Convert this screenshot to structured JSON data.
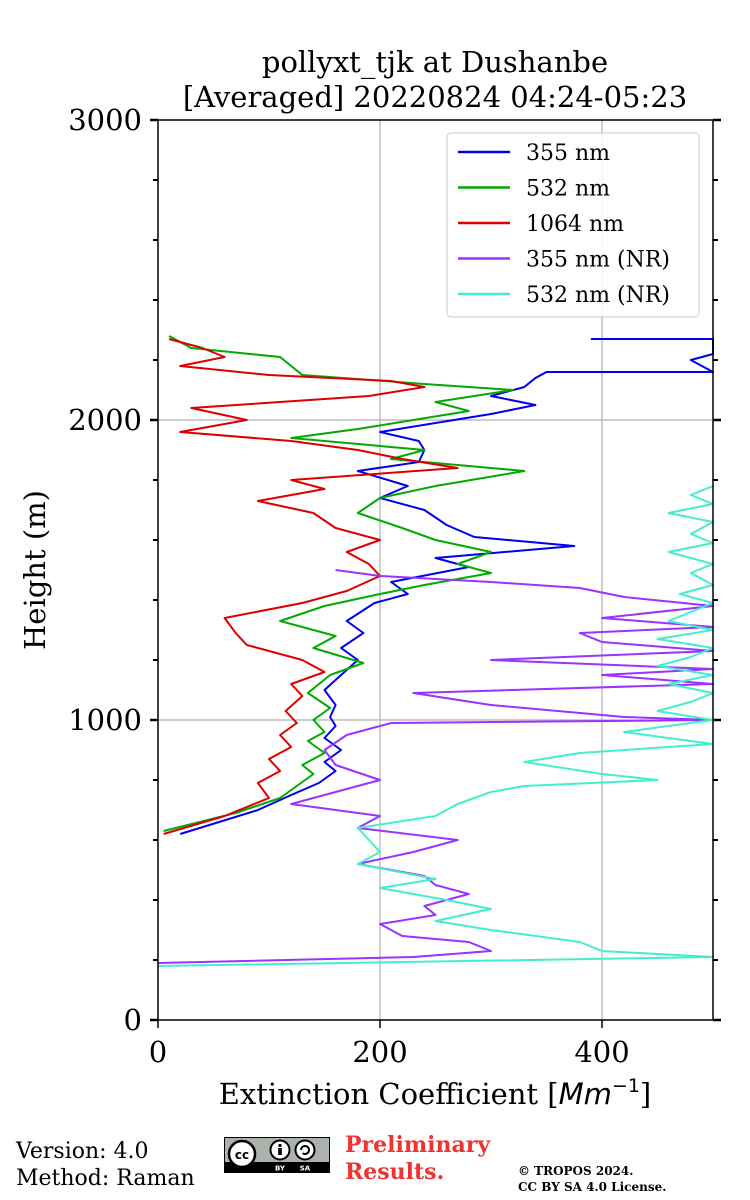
{
  "chart_data": {
    "type": "line",
    "title_line1": "pollyxt_tjk at Dushanbe",
    "title_line2": "[Averaged] 20220824 04:24-05:23",
    "xlabel": "Extinction Coefficient [Mm⁻¹]",
    "xlabel_prefix": "Extinction Coefficient [",
    "xlabel_unit": "Mm",
    "xlabel_exp": "−1",
    "xlabel_suffix": "]",
    "ylabel": "Height (m)",
    "xlim": [
      0,
      500
    ],
    "ylim": [
      0,
      3000
    ],
    "xticks": [
      0,
      200,
      400
    ],
    "yticks": [
      0,
      1000,
      2000,
      3000
    ],
    "grid": true,
    "legend_position": "top-right",
    "series": [
      {
        "name": "355 nm",
        "color": "#0000ee",
        "points": [
          [
            20,
            620
          ],
          [
            90,
            700
          ],
          [
            120,
            750
          ],
          [
            145,
            790
          ],
          [
            160,
            830
          ],
          [
            150,
            860
          ],
          [
            165,
            900
          ],
          [
            150,
            940
          ],
          [
            160,
            980
          ],
          [
            155,
            1010
          ],
          [
            160,
            1050
          ],
          [
            150,
            1100
          ],
          [
            165,
            1150
          ],
          [
            180,
            1200
          ],
          [
            165,
            1240
          ],
          [
            185,
            1290
          ],
          [
            170,
            1330
          ],
          [
            195,
            1390
          ],
          [
            225,
            1420
          ],
          [
            210,
            1460
          ],
          [
            280,
            1510
          ],
          [
            250,
            1540
          ],
          [
            375,
            1580
          ],
          [
            285,
            1610
          ],
          [
            260,
            1650
          ],
          [
            240,
            1700
          ],
          [
            200,
            1740
          ],
          [
            225,
            1780
          ],
          [
            180,
            1830
          ],
          [
            235,
            1860
          ],
          [
            240,
            1900
          ],
          [
            235,
            1930
          ],
          [
            200,
            1960
          ],
          [
            250,
            1990
          ],
          [
            300,
            2020
          ],
          [
            340,
            2050
          ],
          [
            300,
            2080
          ],
          [
            330,
            2110
          ],
          [
            340,
            2140
          ],
          [
            350,
            2160
          ],
          [
            500,
            2160
          ],
          [
            480,
            2200
          ],
          [
            500,
            2220
          ],
          [
            500,
            2270
          ],
          [
            390,
            2270
          ]
        ]
      },
      {
        "name": "532 nm",
        "color": "#00aa00",
        "points": [
          [
            5,
            630
          ],
          [
            70,
            690
          ],
          [
            110,
            740
          ],
          [
            125,
            780
          ],
          [
            140,
            820
          ],
          [
            130,
            850
          ],
          [
            150,
            890
          ],
          [
            135,
            930
          ],
          [
            150,
            960
          ],
          [
            140,
            1000
          ],
          [
            155,
            1040
          ],
          [
            135,
            1090
          ],
          [
            155,
            1150
          ],
          [
            185,
            1190
          ],
          [
            140,
            1240
          ],
          [
            160,
            1280
          ],
          [
            110,
            1330
          ],
          [
            150,
            1380
          ],
          [
            200,
            1420
          ],
          [
            240,
            1450
          ],
          [
            300,
            1490
          ],
          [
            270,
            1520
          ],
          [
            300,
            1560
          ],
          [
            250,
            1600
          ],
          [
            220,
            1640
          ],
          [
            180,
            1690
          ],
          [
            200,
            1740
          ],
          [
            250,
            1780
          ],
          [
            330,
            1830
          ],
          [
            210,
            1870
          ],
          [
            240,
            1900
          ],
          [
            120,
            1940
          ],
          [
            180,
            1970
          ],
          [
            280,
            2030
          ],
          [
            250,
            2060
          ],
          [
            320,
            2100
          ],
          [
            240,
            2120
          ],
          [
            130,
            2150
          ],
          [
            120,
            2180
          ],
          [
            110,
            2210
          ],
          [
            30,
            2240
          ],
          [
            10,
            2280
          ]
        ]
      },
      {
        "name": "1064 nm",
        "color": "#dd0000",
        "points": [
          [
            5,
            620
          ],
          [
            60,
            680
          ],
          [
            100,
            740
          ],
          [
            90,
            790
          ],
          [
            110,
            830
          ],
          [
            100,
            870
          ],
          [
            120,
            910
          ],
          [
            110,
            950
          ],
          [
            125,
            990
          ],
          [
            115,
            1030
          ],
          [
            130,
            1080
          ],
          [
            120,
            1120
          ],
          [
            150,
            1160
          ],
          [
            130,
            1200
          ],
          [
            80,
            1250
          ],
          [
            70,
            1290
          ],
          [
            60,
            1340
          ],
          [
            130,
            1390
          ],
          [
            170,
            1430
          ],
          [
            200,
            1480
          ],
          [
            190,
            1520
          ],
          [
            170,
            1560
          ],
          [
            200,
            1600
          ],
          [
            160,
            1640
          ],
          [
            140,
            1690
          ],
          [
            90,
            1730
          ],
          [
            150,
            1770
          ],
          [
            120,
            1800
          ],
          [
            270,
            1840
          ],
          [
            220,
            1870
          ],
          [
            180,
            1900
          ],
          [
            120,
            1930
          ],
          [
            20,
            1960
          ],
          [
            80,
            2000
          ],
          [
            30,
            2040
          ],
          [
            190,
            2080
          ],
          [
            240,
            2110
          ],
          [
            210,
            2130
          ],
          [
            100,
            2150
          ],
          [
            20,
            2180
          ],
          [
            60,
            2210
          ],
          [
            40,
            2240
          ],
          [
            10,
            2270
          ]
        ]
      },
      {
        "name": "355 nm (NR)",
        "color": "#9933ff",
        "points": [
          [
            0,
            190
          ],
          [
            230,
            210
          ],
          [
            300,
            230
          ],
          [
            280,
            260
          ],
          [
            220,
            280
          ],
          [
            200,
            320
          ],
          [
            250,
            350
          ],
          [
            240,
            380
          ],
          [
            280,
            420
          ],
          [
            250,
            450
          ],
          [
            240,
            480
          ],
          [
            180,
            520
          ],
          [
            230,
            560
          ],
          [
            270,
            600
          ],
          [
            180,
            640
          ],
          [
            200,
            680
          ],
          [
            120,
            720
          ],
          [
            160,
            760
          ],
          [
            200,
            800
          ],
          [
            160,
            850
          ],
          [
            150,
            900
          ],
          [
            170,
            950
          ],
          [
            210,
            990
          ],
          [
            500,
            1000
          ],
          [
            420,
            1010
          ],
          [
            300,
            1050
          ],
          [
            230,
            1090
          ],
          [
            500,
            1120
          ],
          [
            400,
            1150
          ],
          [
            500,
            1170
          ],
          [
            300,
            1200
          ],
          [
            500,
            1230
          ],
          [
            400,
            1260
          ],
          [
            380,
            1290
          ],
          [
            500,
            1310
          ],
          [
            400,
            1340
          ],
          [
            500,
            1380
          ],
          [
            420,
            1410
          ],
          [
            380,
            1440
          ],
          [
            300,
            1460
          ],
          [
            200,
            1480
          ],
          [
            160,
            1500
          ]
        ]
      },
      {
        "name": "532 nm (NR)",
        "color": "#44eecc",
        "points": [
          [
            0,
            180
          ],
          [
            500,
            210
          ],
          [
            400,
            230
          ],
          [
            380,
            260
          ],
          [
            300,
            300
          ],
          [
            250,
            330
          ],
          [
            300,
            370
          ],
          [
            260,
            400
          ],
          [
            200,
            440
          ],
          [
            250,
            470
          ],
          [
            180,
            520
          ],
          [
            200,
            560
          ],
          [
            190,
            600
          ],
          [
            180,
            640
          ],
          [
            250,
            680
          ],
          [
            270,
            720
          ],
          [
            300,
            760
          ],
          [
            330,
            780
          ],
          [
            450,
            800
          ],
          [
            400,
            820
          ],
          [
            330,
            860
          ],
          [
            380,
            890
          ],
          [
            500,
            920
          ],
          [
            420,
            960
          ],
          [
            500,
            1000
          ],
          [
            450,
            1030
          ],
          [
            480,
            1060
          ],
          [
            500,
            1090
          ],
          [
            460,
            1120
          ],
          [
            500,
            1150
          ],
          [
            450,
            1180
          ],
          [
            480,
            1210
          ],
          [
            500,
            1240
          ],
          [
            450,
            1270
          ],
          [
            500,
            1300
          ],
          [
            460,
            1330
          ],
          [
            480,
            1360
          ],
          [
            500,
            1390
          ],
          [
            470,
            1420
          ],
          [
            500,
            1450
          ],
          [
            480,
            1490
          ],
          [
            500,
            1520
          ],
          [
            460,
            1560
          ],
          [
            500,
            1590
          ],
          [
            480,
            1620
          ],
          [
            500,
            1660
          ],
          [
            460,
            1690
          ],
          [
            500,
            1720
          ],
          [
            480,
            1750
          ],
          [
            500,
            1780
          ]
        ]
      }
    ]
  },
  "footer": {
    "version": "Version: 4.0",
    "method": "Method: Raman",
    "preliminary_line1": "Preliminary",
    "preliminary_line2": "Results.",
    "copyright_line1": "© TROPOS 2024.",
    "copyright_line2": "CC BY SA 4.0 License.",
    "license_badge_icon": "cc-by-sa-badge-icon"
  }
}
